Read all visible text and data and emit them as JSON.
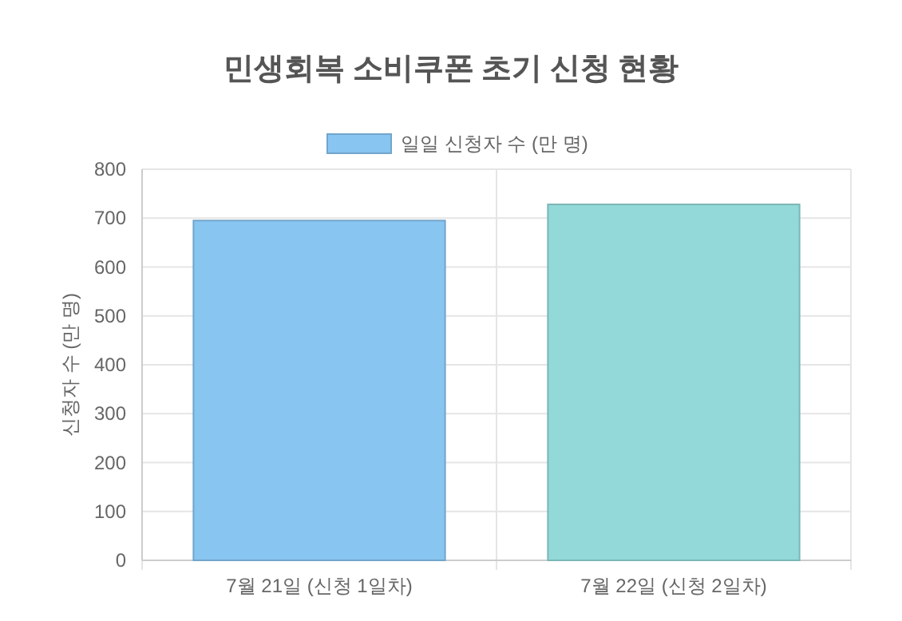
{
  "chart_data": {
    "type": "bar",
    "title": "민생회복 소비쿠폰 초기 신청 현황",
    "ylabel": "신청자 수 (만 명)",
    "categories": [
      "7월 21일 (신청 1일차)",
      "7월 22일 (신청 2일차)"
    ],
    "series": [
      {
        "name": "일일 신청자 수 (만 명)",
        "color": "#88c5f1",
        "colors": [
          "#88c5f1",
          "#93d9d9"
        ],
        "values": [
          695,
          728
        ]
      }
    ],
    "ylim": [
      0,
      800
    ],
    "yticks": [
      0,
      100,
      200,
      300,
      400,
      500,
      600,
      700,
      800
    ],
    "grid": true,
    "legend": "top"
  }
}
